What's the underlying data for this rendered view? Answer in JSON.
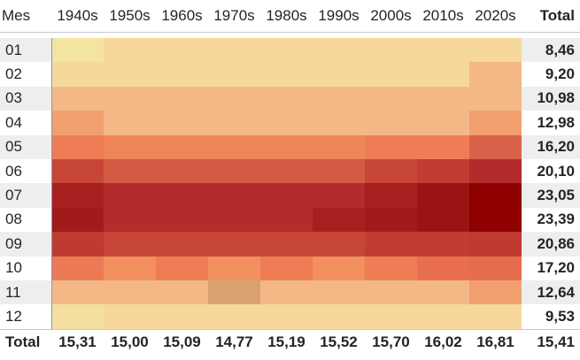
{
  "matrix": {
    "row_header": "Mes",
    "total_label": "Total",
    "columns": [
      "1940s",
      "1950s",
      "1960s",
      "1970s",
      "1980s",
      "1990s",
      "2000s",
      "2010s",
      "2020s"
    ],
    "rows": [
      {
        "label": "01",
        "total": "8,46"
      },
      {
        "label": "02",
        "total": "9,20"
      },
      {
        "label": "03",
        "total": "10,98"
      },
      {
        "label": "04",
        "total": "12,98"
      },
      {
        "label": "05",
        "total": "16,20"
      },
      {
        "label": "06",
        "total": "20,10"
      },
      {
        "label": "07",
        "total": "23,05"
      },
      {
        "label": "08",
        "total": "23,39"
      },
      {
        "label": "09",
        "total": "20,86"
      },
      {
        "label": "10",
        "total": "17,20"
      },
      {
        "label": "11",
        "total": "12,64"
      },
      {
        "label": "12",
        "total": "9,53"
      }
    ],
    "column_totals": [
      "15,31",
      "15,00",
      "15,09",
      "14,77",
      "15,19",
      "15,52",
      "15,70",
      "16,02",
      "16,81"
    ],
    "grand_total": "15,41",
    "cell_colors": [
      [
        "#f3e4a0",
        "#f6d89b",
        "#f6d89b",
        "#f6d89b",
        "#f6d89b",
        "#f6d89b",
        "#f6d89b",
        "#f6d89b",
        "#f6d89b"
      ],
      [
        "#f6d89b",
        "#f6d89b",
        "#f6d89b",
        "#f6d89b",
        "#f6d89b",
        "#f6d89b",
        "#f6d89b",
        "#f6d89b",
        "#f3b886"
      ],
      [
        "#f3b886",
        "#f3b886",
        "#f3b886",
        "#f3b886",
        "#f3b886",
        "#f3b886",
        "#f3b886",
        "#f3b886",
        "#f3b886"
      ],
      [
        "#f2a070",
        "#f3b886",
        "#f3b886",
        "#f3b886",
        "#f3b886",
        "#f3b886",
        "#f3b886",
        "#f3b886",
        "#f2a070"
      ],
      [
        "#ee7d55",
        "#ef8658",
        "#ef8658",
        "#ef8658",
        "#ef8658",
        "#ef8658",
        "#ee7d55",
        "#ee7d55",
        "#d9624a"
      ],
      [
        "#c74638",
        "#d35a43",
        "#d35a43",
        "#d35a43",
        "#d35a43",
        "#d35a43",
        "#c74638",
        "#c13c33",
        "#b22c2c"
      ],
      [
        "#a81f1f",
        "#b22c2c",
        "#b22c2c",
        "#b22c2c",
        "#b22c2c",
        "#b22c2c",
        "#a81f1f",
        "#9a1414",
        "#8f0000"
      ],
      [
        "#a31a1a",
        "#b22c2c",
        "#b22c2c",
        "#b22c2c",
        "#b22c2c",
        "#a81f1f",
        "#a31a1a",
        "#9a1414",
        "#8f0000"
      ],
      [
        "#bf3a30",
        "#c74638",
        "#c74638",
        "#c74638",
        "#c74638",
        "#c74638",
        "#c13c33",
        "#c13c33",
        "#bf3a30"
      ],
      [
        "#ec7a55",
        "#f2905e",
        "#ee7d55",
        "#f2905e",
        "#ee7d55",
        "#f2905e",
        "#ee7d55",
        "#e86e4f",
        "#e66c4e"
      ],
      [
        "#f3b886",
        "#f3b886",
        "#f3b886",
        "#d9a070",
        "#f3b886",
        "#f3b886",
        "#f3b886",
        "#f3b886",
        "#f2a070"
      ],
      [
        "#f3e0a0",
        "#f6d89b",
        "#f6d89b",
        "#f6d89b",
        "#f6d89b",
        "#f6d89b",
        "#f6d89b",
        "#f6d89b",
        "#f6d89b"
      ]
    ]
  }
}
